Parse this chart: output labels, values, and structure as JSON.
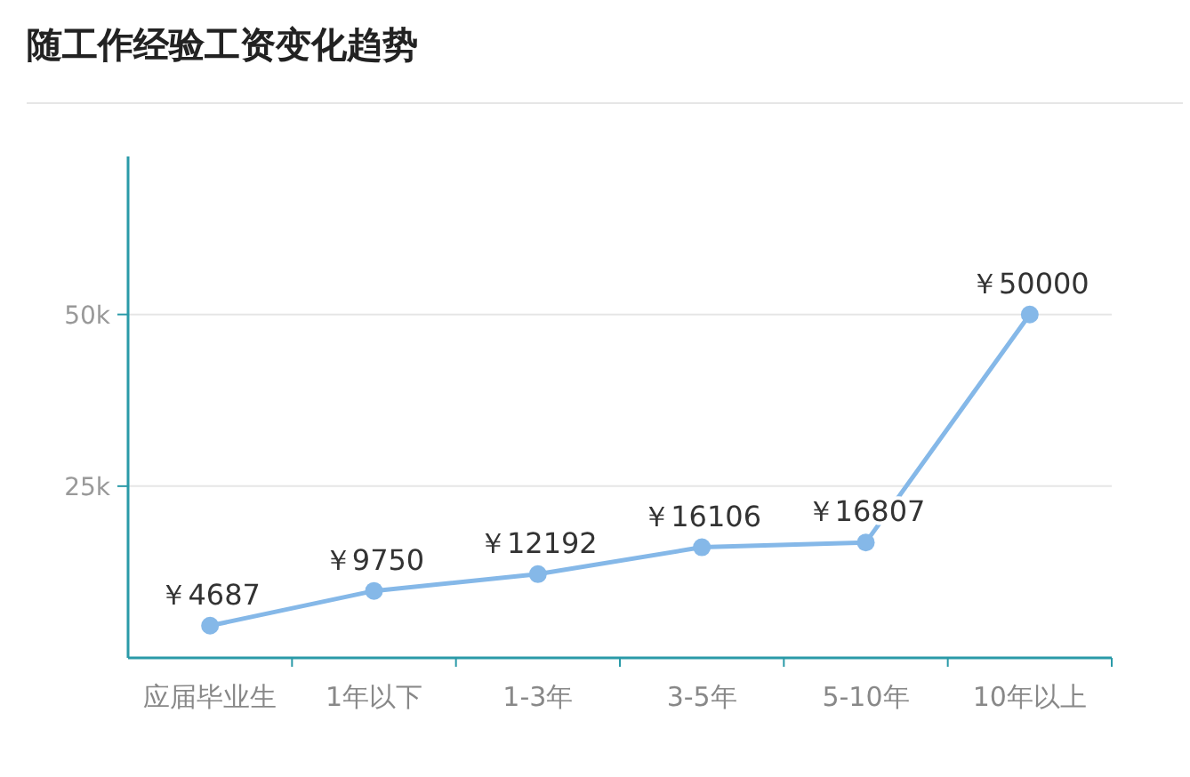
{
  "chart_data": {
    "type": "line",
    "title": "随工作经验工资变化趋势",
    "categories": [
      "应届毕业生",
      "1年以下",
      "1-3年",
      "3-5年",
      "5-10年",
      "10年以上"
    ],
    "series": [
      {
        "color": "#85b8e8",
        "values": [
          4687,
          9750,
          12192,
          16106,
          16807,
          50000
        ],
        "value_labels": [
          "￥4687",
          "￥9750",
          "￥12192",
          "￥16106",
          "￥16807",
          "￥50000"
        ]
      }
    ],
    "ylim": [
      0,
      73000
    ],
    "yticks": [
      {
        "value": 25000,
        "label": "25k"
      },
      {
        "value": 50000,
        "label": "50k"
      }
    ],
    "grid": "y",
    "marker": "circle",
    "line_style": "solid"
  }
}
